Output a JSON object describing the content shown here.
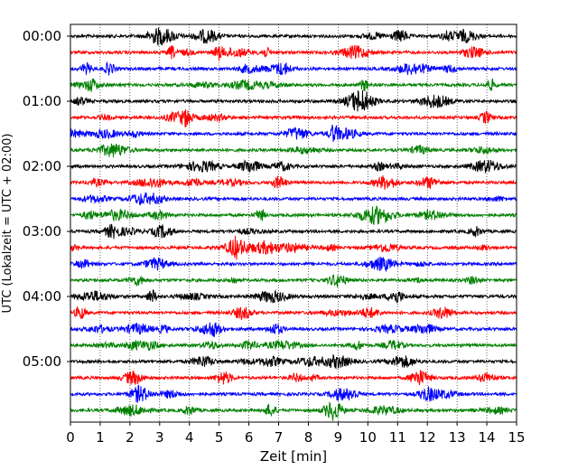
{
  "chart_data": {
    "type": "line",
    "title": "",
    "xlabel": "Zeit  [min]",
    "ylabel": "UTC (Lokalzeit = UTC + 02:00)",
    "xlim": [
      0,
      15
    ],
    "x_ticks": [
      0,
      1,
      2,
      3,
      4,
      5,
      6,
      7,
      8,
      9,
      10,
      11,
      12,
      13,
      14,
      15
    ],
    "x_tick_labels": [
      "0",
      "1",
      "2",
      "3",
      "4",
      "5",
      "6",
      "7",
      "8",
      "9",
      "10",
      "11",
      "12",
      "13",
      "14",
      "15"
    ],
    "y_tick_labels": [
      "00:00",
      "01:00",
      "02:00",
      "03:00",
      "04:00",
      "05:00"
    ],
    "grid": "vertical dotted",
    "trace_count": 24,
    "trace_interval_min": 15,
    "trace_colors": [
      "#000000",
      "#ff0000",
      "#0000ff",
      "#008000"
    ],
    "traces": [
      {
        "start": "00:00"
      },
      {
        "start": "00:15"
      },
      {
        "start": "00:30"
      },
      {
        "start": "00:45"
      },
      {
        "start": "01:00"
      },
      {
        "start": "01:15"
      },
      {
        "start": "01:30"
      },
      {
        "start": "01:45"
      },
      {
        "start": "02:00"
      },
      {
        "start": "02:15"
      },
      {
        "start": "02:30"
      },
      {
        "start": "02:45"
      },
      {
        "start": "03:00"
      },
      {
        "start": "03:15"
      },
      {
        "start": "03:30"
      },
      {
        "start": "03:45"
      },
      {
        "start": "04:00"
      },
      {
        "start": "04:15"
      },
      {
        "start": "04:30"
      },
      {
        "start": "04:45"
      },
      {
        "start": "05:00"
      },
      {
        "start": "05:15"
      },
      {
        "start": "05:30"
      },
      {
        "start": "05:45"
      }
    ]
  }
}
